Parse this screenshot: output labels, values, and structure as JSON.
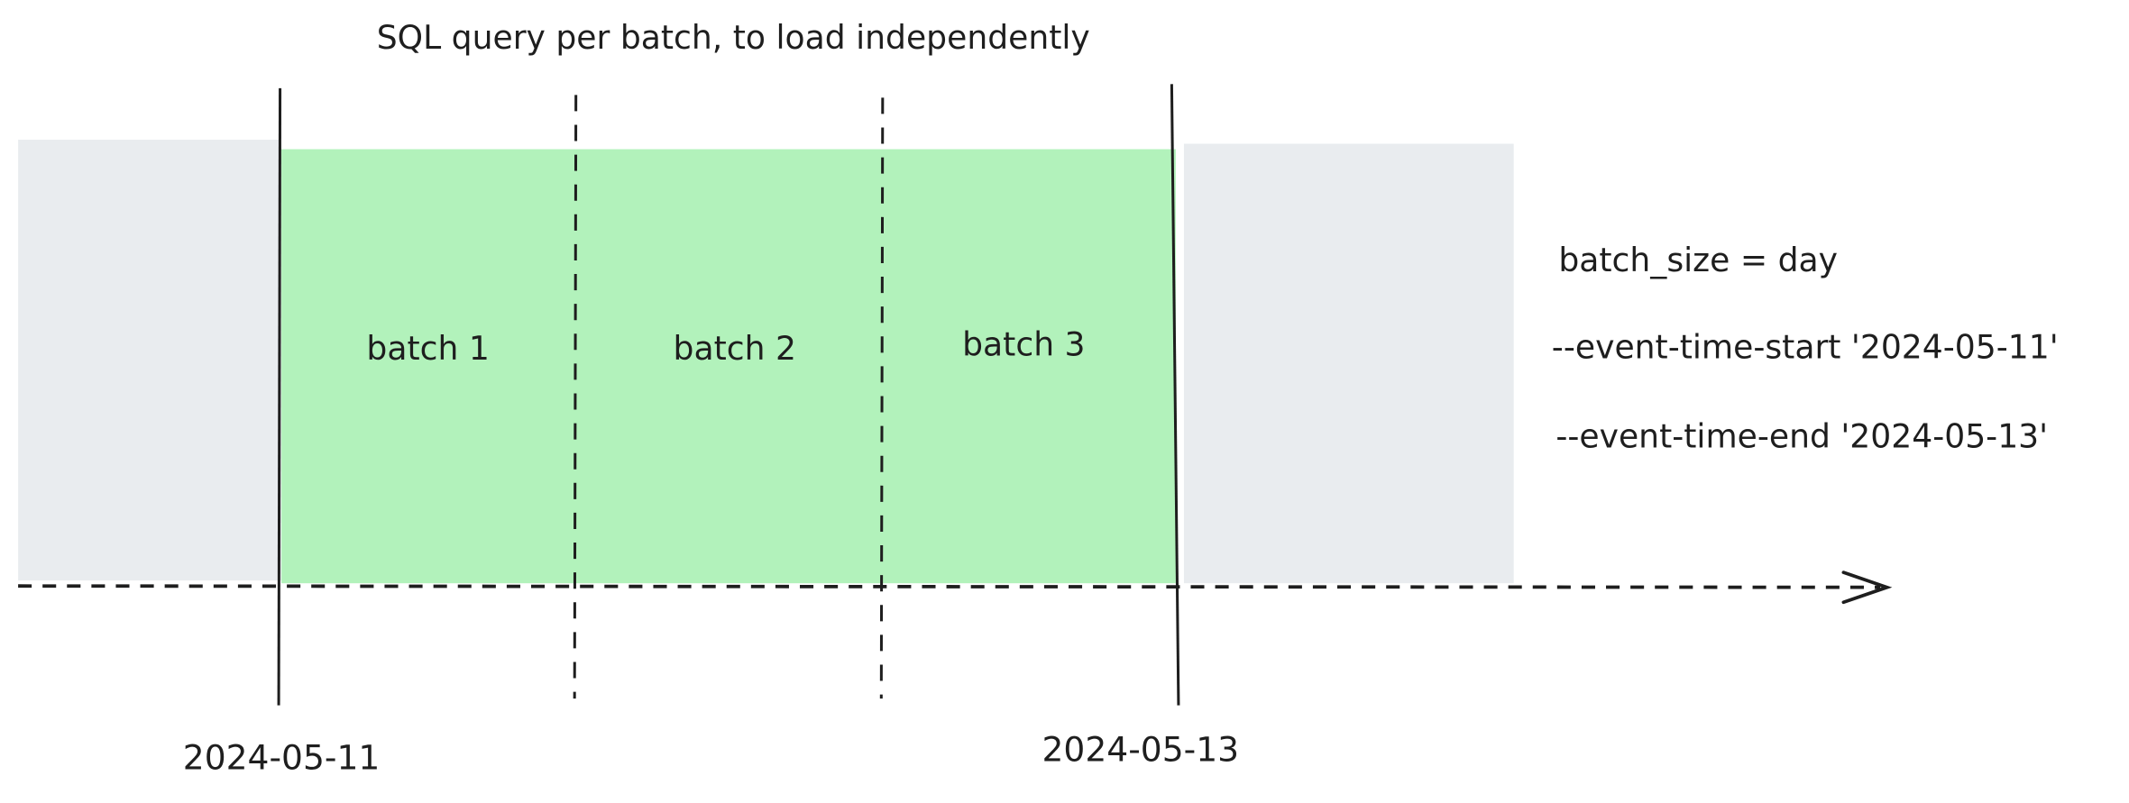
{
  "title": "SQL query per batch, to load independently",
  "batches": [
    {
      "label": "batch 1"
    },
    {
      "label": "batch 2"
    },
    {
      "label": "batch 3"
    }
  ],
  "dates": {
    "start": "2024-05-11",
    "end": "2024-05-13"
  },
  "config": {
    "batch_size": "batch_size = day",
    "event_time_start": "--event-time-start '2024-05-11'",
    "event_time_end": "--event-time-end '2024-05-13'"
  },
  "colors": {
    "selected_region": "#b2f2bb",
    "outside_region": "#e9ecef",
    "stroke": "#1e1e1e"
  }
}
